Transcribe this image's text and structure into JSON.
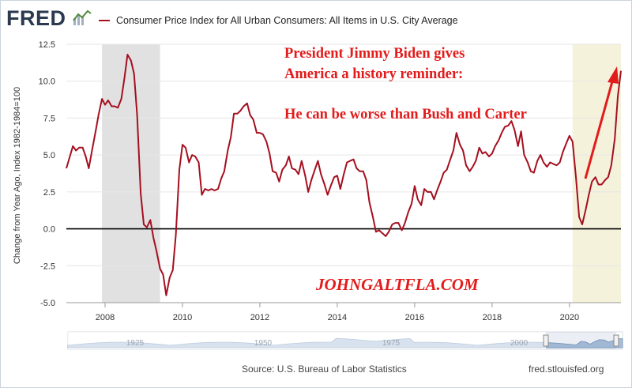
{
  "header": {
    "logo_text": "FRED",
    "logo_icon": "fred-chart-icon",
    "series_label": "Consumer Price Index for All Urban Consumers: All Items in U.S. City Average",
    "series_color": "#a50f1f"
  },
  "annotations": {
    "line1": "President Jimmy Biden gives",
    "line2": "America a history reminder:",
    "line3": "He can be worse than Bush and Carter",
    "watermark": "JOHNGALTFLA.COM",
    "color": "#e21b1b"
  },
  "footer": {
    "source": "Source: U.S. Bureau of Labor Statistics",
    "url": "fred.stlouisfed.org"
  },
  "chart_data": {
    "type": "line",
    "ylabel": "Change from Year Ago, Index 1982-1984=100",
    "ylim": [
      -5.0,
      12.5
    ],
    "yticks": [
      "12.5",
      "10.0",
      "7.5",
      "5.0",
      "2.5",
      "0.0",
      "-2.5",
      "-5.0"
    ],
    "xticks": [
      "2008",
      "2010",
      "2012",
      "2014",
      "2016",
      "2018",
      "2020"
    ],
    "xlim": [
      2007.0,
      2021.33
    ],
    "recessions": [
      [
        2007.92,
        2009.42
      ],
      [
        2020.08,
        2021.33
      ]
    ],
    "recession_colors": [
      "#e1e1e1",
      "#f5f2dc"
    ],
    "zero_line": true,
    "series": [
      {
        "color": "#a50f1f",
        "x": [
          2007.0,
          2007.08,
          2007.17,
          2007.25,
          2007.33,
          2007.42,
          2007.5,
          2007.58,
          2007.67,
          2007.75,
          2007.83,
          2007.92,
          2008.0,
          2008.08,
          2008.17,
          2008.25,
          2008.33,
          2008.42,
          2008.5,
          2008.58,
          2008.67,
          2008.75,
          2008.83,
          2008.92,
          2009.0,
          2009.08,
          2009.17,
          2009.25,
          2009.33,
          2009.42,
          2009.5,
          2009.58,
          2009.67,
          2009.75,
          2009.83,
          2009.92,
          2010.0,
          2010.08,
          2010.17,
          2010.25,
          2010.33,
          2010.42,
          2010.5,
          2010.58,
          2010.67,
          2010.75,
          2010.83,
          2010.92,
          2011.0,
          2011.08,
          2011.17,
          2011.25,
          2011.33,
          2011.42,
          2011.5,
          2011.58,
          2011.67,
          2011.75,
          2011.83,
          2011.92,
          2012.0,
          2012.08,
          2012.17,
          2012.25,
          2012.33,
          2012.42,
          2012.5,
          2012.58,
          2012.67,
          2012.75,
          2012.83,
          2012.92,
          2013.0,
          2013.08,
          2013.17,
          2013.25,
          2013.33,
          2013.42,
          2013.5,
          2013.58,
          2013.67,
          2013.75,
          2013.83,
          2013.92,
          2014.0,
          2014.08,
          2014.17,
          2014.25,
          2014.33,
          2014.42,
          2014.5,
          2014.58,
          2014.67,
          2014.75,
          2014.83,
          2014.92,
          2015.0,
          2015.08,
          2015.17,
          2015.25,
          2015.33,
          2015.42,
          2015.5,
          2015.58,
          2015.67,
          2015.75,
          2015.83,
          2015.92,
          2016.0,
          2016.08,
          2016.17,
          2016.25,
          2016.33,
          2016.42,
          2016.5,
          2016.58,
          2016.67,
          2016.75,
          2016.83,
          2016.92,
          2017.0,
          2017.08,
          2017.17,
          2017.25,
          2017.33,
          2017.42,
          2017.5,
          2017.58,
          2017.67,
          2017.75,
          2017.83,
          2017.92,
          2018.0,
          2018.08,
          2018.17,
          2018.25,
          2018.33,
          2018.42,
          2018.5,
          2018.58,
          2018.67,
          2018.75,
          2018.83,
          2018.92,
          2019.0,
          2019.08,
          2019.17,
          2019.25,
          2019.33,
          2019.42,
          2019.5,
          2019.58,
          2019.67,
          2019.75,
          2019.83,
          2019.92,
          2020.0,
          2020.08,
          2020.17,
          2020.25,
          2020.33,
          2020.42,
          2020.5,
          2020.58,
          2020.67,
          2020.75,
          2020.83,
          2020.92,
          2021.0,
          2021.08,
          2021.17,
          2021.25,
          2021.33
        ],
        "values": [
          4.1,
          4.8,
          5.6,
          5.3,
          5.5,
          5.5,
          4.9,
          4.1,
          5.4,
          6.5,
          7.7,
          8.8,
          8.4,
          8.7,
          8.3,
          8.3,
          8.2,
          8.8,
          10.2,
          11.8,
          11.4,
          10.5,
          7.7,
          2.4,
          0.3,
          0.1,
          0.6,
          -0.6,
          -1.5,
          -2.7,
          -3.1,
          -4.5,
          -3.3,
          -2.8,
          -0.4,
          4.0,
          5.7,
          5.5,
          4.5,
          5.0,
          4.9,
          4.5,
          2.3,
          2.7,
          2.6,
          2.7,
          2.6,
          2.7,
          3.4,
          3.9,
          5.3,
          6.2,
          7.8,
          7.8,
          8.0,
          8.3,
          8.5,
          7.7,
          7.4,
          6.5,
          6.5,
          6.4,
          5.9,
          5.1,
          3.9,
          3.8,
          3.2,
          4.0,
          4.3,
          4.9,
          4.1,
          4.0,
          3.7,
          4.6,
          3.6,
          2.5,
          3.3,
          4.0,
          4.6,
          3.7,
          3.0,
          2.3,
          2.9,
          3.5,
          3.6,
          2.7,
          3.7,
          4.5,
          4.6,
          4.7,
          4.1,
          3.9,
          3.9,
          3.3,
          1.8,
          0.8,
          -0.2,
          -0.1,
          -0.3,
          -0.5,
          -0.2,
          0.3,
          0.4,
          0.4,
          -0.1,
          0.4,
          1.1,
          1.7,
          2.9,
          2.0,
          1.6,
          2.7,
          2.5,
          2.5,
          2.0,
          2.6,
          3.2,
          3.8,
          4.0,
          4.7,
          5.3,
          6.5,
          5.7,
          5.3,
          4.3,
          3.9,
          4.2,
          4.6,
          5.5,
          5.1,
          5.2,
          4.9,
          5.1,
          5.6,
          6.0,
          6.5,
          6.9,
          7.0,
          7.3,
          6.7,
          5.6,
          6.6,
          5.0,
          4.5,
          3.9,
          3.8,
          4.6,
          5.0,
          4.5,
          4.2,
          4.5,
          4.4,
          4.3,
          4.5,
          5.2,
          5.8,
          6.3,
          5.9,
          3.4,
          0.8,
          0.3,
          1.3,
          2.3,
          3.2,
          3.5,
          3.0,
          3.0,
          3.3,
          3.5,
          4.3,
          6.1,
          9.0,
          10.7
        ]
      }
    ],
    "navigator": {
      "labels": [
        "1925",
        "1950",
        "1975",
        "2000"
      ]
    }
  }
}
